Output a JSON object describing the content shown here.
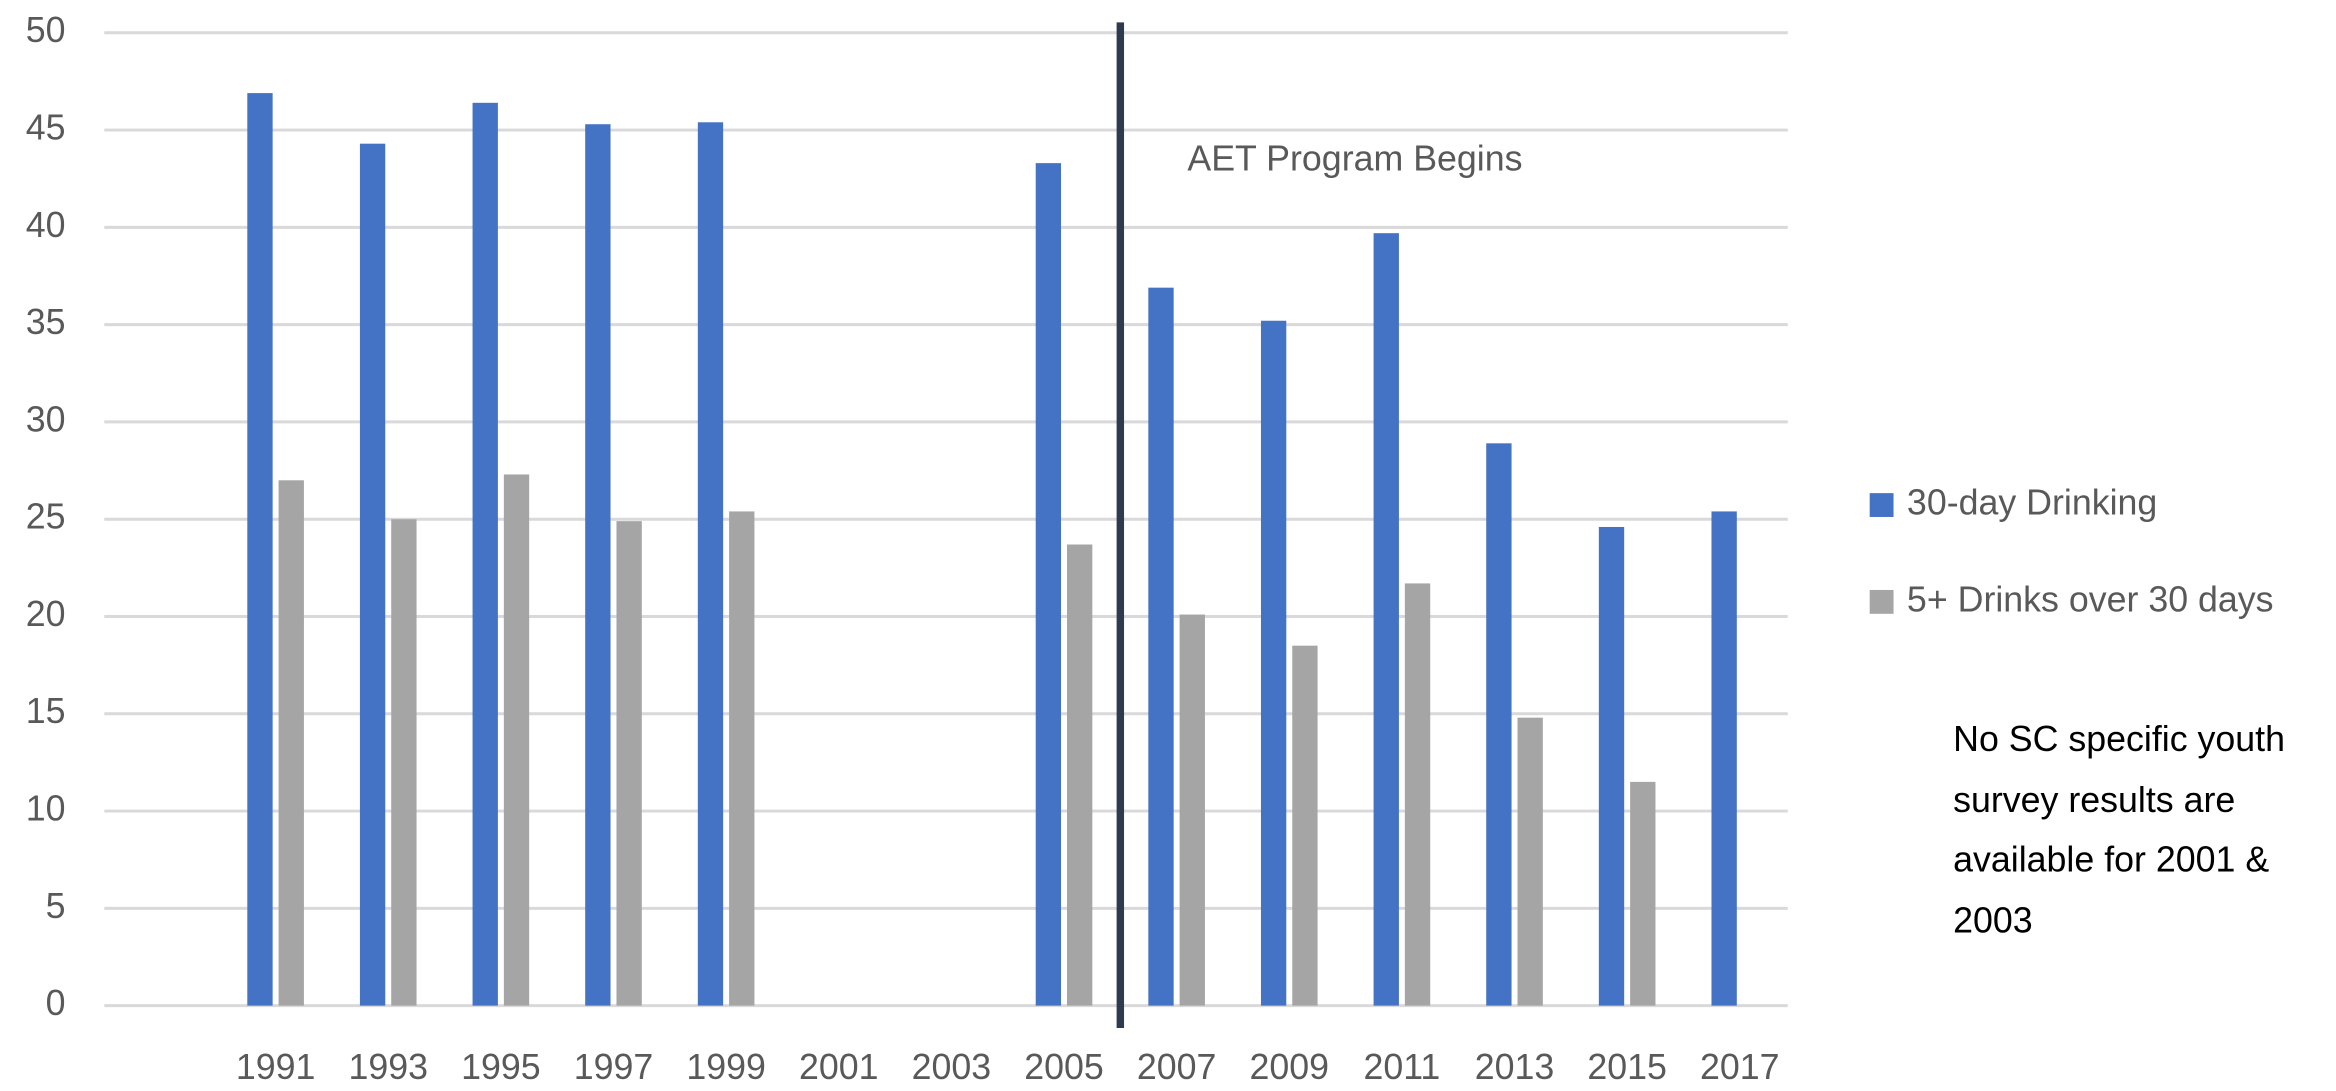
{
  "chart_data": {
    "type": "bar",
    "categories": [
      "1991",
      "1993",
      "1995",
      "1997",
      "1999",
      "2001",
      "2003",
      "2005",
      "2007",
      "2009",
      "2011",
      "2013",
      "2015",
      "2017"
    ],
    "series": [
      {
        "name": "30-day Drinking",
        "color": "#4472c4",
        "values": [
          46.9,
          44.3,
          46.4,
          45.3,
          45.4,
          null,
          null,
          43.3,
          36.9,
          35.2,
          39.7,
          28.9,
          24.6,
          25.4
        ]
      },
      {
        "name": "5+ Drinks over 30 days",
        "color": "#a5a5a5",
        "values": [
          27.0,
          25.0,
          27.3,
          24.9,
          25.4,
          null,
          null,
          23.7,
          20.1,
          18.5,
          21.7,
          14.8,
          11.5,
          null
        ]
      }
    ],
    "ylim": [
      0,
      50
    ],
    "yticks": [
      0,
      5,
      10,
      15,
      20,
      25,
      30,
      35,
      40,
      45,
      50
    ],
    "grid": true,
    "annotations": [
      "AET Program Begins",
      "No SC specific youth survey results are available for 2001 & 2003"
    ],
    "legend": "right"
  }
}
